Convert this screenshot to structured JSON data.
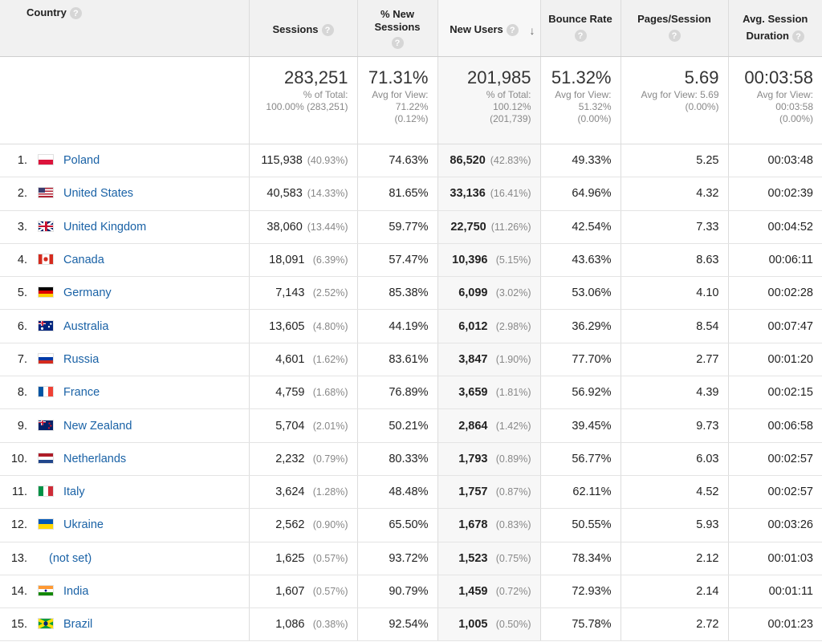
{
  "headers": {
    "country": "Country",
    "sessions": "Sessions",
    "new_sessions_1": "% New",
    "new_sessions_2": "Sessions",
    "new_users": "New Users",
    "bounce_rate": "Bounce Rate",
    "pages_session": "Pages/Session",
    "avg_duration_1": "Avg. Session",
    "avg_duration_2": "Duration",
    "help": "?",
    "sort_arrow": "↓"
  },
  "summary": {
    "sessions": {
      "value": "283,251",
      "line1": "% of Total:",
      "line2": "100.00% (283,251)"
    },
    "new_sessions": {
      "value": "71.31%",
      "line1": "Avg for View:",
      "line2": "71.22%",
      "line3": "(0.12%)"
    },
    "new_users": {
      "value": "201,985",
      "line1": "% of Total:",
      "line2": "100.12%",
      "line3": "(201,739)"
    },
    "bounce_rate": {
      "value": "51.32%",
      "line1": "Avg for View:",
      "line2": "51.32%",
      "line3": "(0.00%)"
    },
    "pages_session": {
      "value": "5.69",
      "line1": "Avg for View: 5.69",
      "line2": "(0.00%)"
    },
    "avg_duration": {
      "value": "00:03:58",
      "line1": "Avg for View:",
      "line2": "00:03:58",
      "line3": "(0.00%)"
    }
  },
  "rows": [
    {
      "idx": "1.",
      "country": "Poland",
      "flag": "poland-flag-icon",
      "sessions": "115,938",
      "sessions_pct": "(40.93%)",
      "new_sessions": "74.63%",
      "new_users": "86,520",
      "new_users_pct": "(42.83%)",
      "bounce": "49.33%",
      "pages": "5.25",
      "duration": "00:03:48"
    },
    {
      "idx": "2.",
      "country": "United States",
      "flag": "usa-flag-icon",
      "sessions": "40,583",
      "sessions_pct": "(14.33%)",
      "new_sessions": "81.65%",
      "new_users": "33,136",
      "new_users_pct": "(16.41%)",
      "bounce": "64.96%",
      "pages": "4.32",
      "duration": "00:02:39"
    },
    {
      "idx": "3.",
      "country": "United Kingdom",
      "flag": "uk-flag-icon",
      "sessions": "38,060",
      "sessions_pct": "(13.44%)",
      "new_sessions": "59.77%",
      "new_users": "22,750",
      "new_users_pct": "(11.26%)",
      "bounce": "42.54%",
      "pages": "7.33",
      "duration": "00:04:52"
    },
    {
      "idx": "4.",
      "country": "Canada",
      "flag": "canada-flag-icon",
      "sessions": "18,091",
      "sessions_pct": "(6.39%)",
      "new_sessions": "57.47%",
      "new_users": "10,396",
      "new_users_pct": "(5.15%)",
      "bounce": "43.63%",
      "pages": "8.63",
      "duration": "00:06:11"
    },
    {
      "idx": "5.",
      "country": "Germany",
      "flag": "germany-flag-icon",
      "sessions": "7,143",
      "sessions_pct": "(2.52%)",
      "new_sessions": "85.38%",
      "new_users": "6,099",
      "new_users_pct": "(3.02%)",
      "bounce": "53.06%",
      "pages": "4.10",
      "duration": "00:02:28"
    },
    {
      "idx": "6.",
      "country": "Australia",
      "flag": "australia-flag-icon",
      "sessions": "13,605",
      "sessions_pct": "(4.80%)",
      "new_sessions": "44.19%",
      "new_users": "6,012",
      "new_users_pct": "(2.98%)",
      "bounce": "36.29%",
      "pages": "8.54",
      "duration": "00:07:47"
    },
    {
      "idx": "7.",
      "country": "Russia",
      "flag": "russia-flag-icon",
      "sessions": "4,601",
      "sessions_pct": "(1.62%)",
      "new_sessions": "83.61%",
      "new_users": "3,847",
      "new_users_pct": "(1.90%)",
      "bounce": "77.70%",
      "pages": "2.77",
      "duration": "00:01:20"
    },
    {
      "idx": "8.",
      "country": "France",
      "flag": "france-flag-icon",
      "sessions": "4,759",
      "sessions_pct": "(1.68%)",
      "new_sessions": "76.89%",
      "new_users": "3,659",
      "new_users_pct": "(1.81%)",
      "bounce": "56.92%",
      "pages": "4.39",
      "duration": "00:02:15"
    },
    {
      "idx": "9.",
      "country": "New Zealand",
      "flag": "new-zealand-flag-icon",
      "sessions": "5,704",
      "sessions_pct": "(2.01%)",
      "new_sessions": "50.21%",
      "new_users": "2,864",
      "new_users_pct": "(1.42%)",
      "bounce": "39.45%",
      "pages": "9.73",
      "duration": "00:06:58"
    },
    {
      "idx": "10.",
      "country": "Netherlands",
      "flag": "netherlands-flag-icon",
      "sessions": "2,232",
      "sessions_pct": "(0.79%)",
      "new_sessions": "80.33%",
      "new_users": "1,793",
      "new_users_pct": "(0.89%)",
      "bounce": "56.77%",
      "pages": "6.03",
      "duration": "00:02:57"
    },
    {
      "idx": "11.",
      "country": "Italy",
      "flag": "italy-flag-icon",
      "sessions": "3,624",
      "sessions_pct": "(1.28%)",
      "new_sessions": "48.48%",
      "new_users": "1,757",
      "new_users_pct": "(0.87%)",
      "bounce": "62.11%",
      "pages": "4.52",
      "duration": "00:02:57"
    },
    {
      "idx": "12.",
      "country": "Ukraine",
      "flag": "ukraine-flag-icon",
      "sessions": "2,562",
      "sessions_pct": "(0.90%)",
      "new_sessions": "65.50%",
      "new_users": "1,678",
      "new_users_pct": "(0.83%)",
      "bounce": "50.55%",
      "pages": "5.93",
      "duration": "00:03:26"
    },
    {
      "idx": "13.",
      "country": "(not set)",
      "flag": "",
      "sessions": "1,625",
      "sessions_pct": "(0.57%)",
      "new_sessions": "93.72%",
      "new_users": "1,523",
      "new_users_pct": "(0.75%)",
      "bounce": "78.34%",
      "pages": "2.12",
      "duration": "00:01:03"
    },
    {
      "idx": "14.",
      "country": "India",
      "flag": "india-flag-icon",
      "sessions": "1,607",
      "sessions_pct": "(0.57%)",
      "new_sessions": "90.79%",
      "new_users": "1,459",
      "new_users_pct": "(0.72%)",
      "bounce": "72.93%",
      "pages": "2.14",
      "duration": "00:01:11"
    },
    {
      "idx": "15.",
      "country": "Brazil",
      "flag": "brazil-flag-icon",
      "sessions": "1,086",
      "sessions_pct": "(0.38%)",
      "new_sessions": "92.54%",
      "new_users": "1,005",
      "new_users_pct": "(0.50%)",
      "bounce": "75.78%",
      "pages": "2.72",
      "duration": "00:01:23"
    }
  ]
}
